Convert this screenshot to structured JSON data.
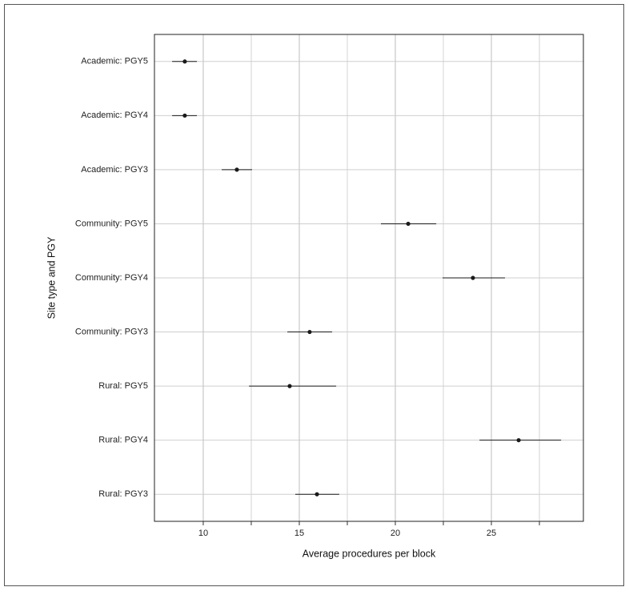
{
  "chart_data": {
    "type": "dot-interval",
    "x_label": "Average procedures per block",
    "y_label": "Site type and PGY",
    "categories": [
      "Academic: PGY5",
      "Academic: PGY4",
      "Academic: PGY3",
      "Community: PGY5",
      "Community: PGY4",
      "Community: PGY3",
      "Rural: PGY5",
      "Rural: PGY4",
      "Rural: PGY3"
    ],
    "values": [
      9.04,
      9.04,
      11.75,
      20.67,
      24.04,
      15.54,
      14.5,
      26.42,
      15.92
    ],
    "lower": [
      8.38,
      8.38,
      10.96,
      19.25,
      22.46,
      14.38,
      12.38,
      24.38,
      14.79
    ],
    "upper": [
      9.67,
      9.67,
      12.54,
      22.13,
      25.71,
      16.71,
      16.92,
      28.63,
      17.08
    ],
    "color": "#1a1a1a",
    "xlim": [
      7.46,
      29.79
    ],
    "xticks": [
      10,
      15,
      20,
      25
    ],
    "xminor": [
      12.5,
      17.5,
      22.5,
      27.5
    ],
    "grid": true
  }
}
